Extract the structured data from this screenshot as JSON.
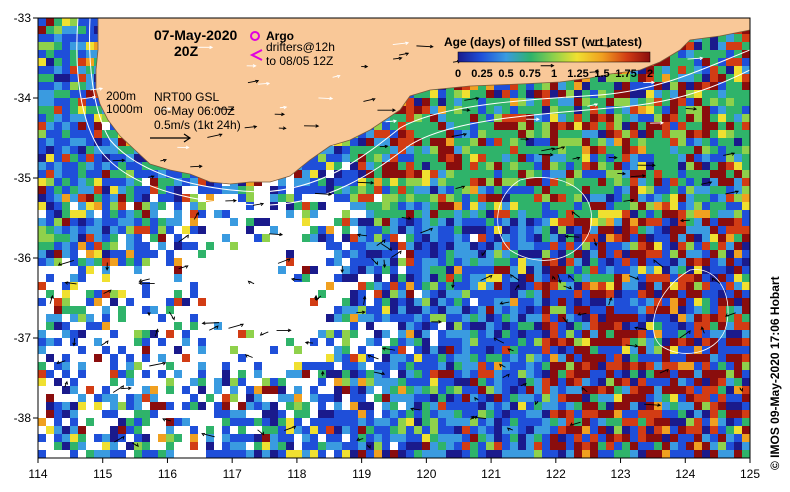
{
  "header": {
    "date": "07-May-2020",
    "hour": "20Z"
  },
  "legend": {
    "argo_label": "Argo",
    "drifters_line1": "drifters@12h",
    "drifters_line2": "to 08/05 12Z",
    "argo_color": "#e000e0",
    "drifter_color": "#e000e0"
  },
  "contours": {
    "c200": "200m",
    "c1000": "1000m"
  },
  "currents": {
    "line1": "NRT00 GSL",
    "line2": "06-May 06:00Z",
    "line3": "0.5m/s (1kt 24h)"
  },
  "colorbar": {
    "title": "Age (days) of filled SST (wrt latest)",
    "ticks": [
      "0",
      "0.25",
      "0.5",
      "0.75",
      "1",
      "1.25",
      "1.5",
      "1.75",
      "2"
    ],
    "colors": [
      "#1a1a8c",
      "#1f4fd9",
      "#3a9be0",
      "#2fb36a",
      "#8fd14b",
      "#f0e030",
      "#f0a020",
      "#d23c14",
      "#8a0d0d"
    ]
  },
  "axes": {
    "x_ticks": [
      "114",
      "115",
      "116",
      "117",
      "118",
      "119",
      "120",
      "121",
      "122",
      "123",
      "124",
      "125"
    ],
    "y_ticks": [
      "-33",
      "-34",
      "-35",
      "-36",
      "-37",
      "-38"
    ]
  },
  "map_region": {
    "lon_min": 114,
    "lon_max": 125,
    "lat_min": -38.5,
    "lat_max": -33
  },
  "land_color": "#f9c898",
  "credit": "© IMOS 09-May-2020 17:06 Hobart"
}
